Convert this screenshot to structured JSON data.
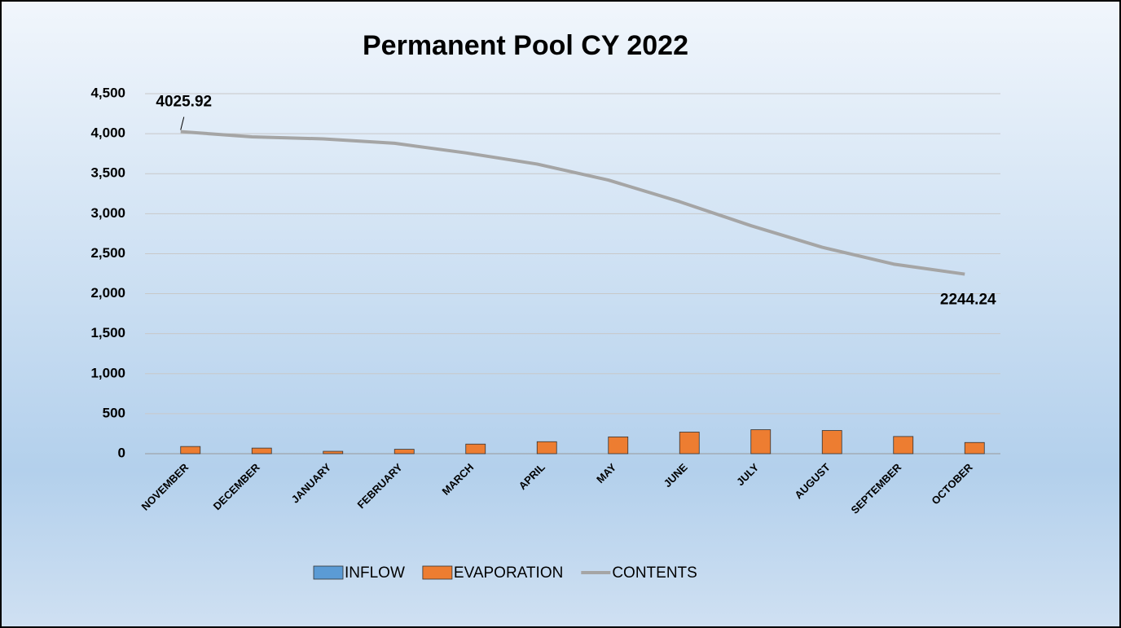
{
  "chart_data": {
    "type": "bar_line",
    "title": "Permanent Pool CY 2022",
    "categories": [
      "NOVEMBER",
      "DECEMBER",
      "JANUARY",
      "FEBRUARY",
      "MARCH",
      "APRIL",
      "MAY",
      "JUNE",
      "JULY",
      "AUGUST",
      "SEPTEMBER",
      "OCTOBER"
    ],
    "series": [
      {
        "name": "INFLOW",
        "type": "bar",
        "color": "#5b9bd5",
        "values": [
          0,
          0,
          0,
          0,
          0,
          0,
          0,
          0,
          0,
          0,
          0,
          0
        ]
      },
      {
        "name": "EVAPORATION",
        "type": "bar",
        "color": "#ed7d31",
        "values": [
          90,
          70,
          30,
          55,
          120,
          150,
          210,
          270,
          300,
          290,
          215,
          140
        ]
      },
      {
        "name": "CONTENTS",
        "type": "line",
        "color": "#a5a5a5",
        "values": [
          4025.92,
          3960,
          3935,
          3880,
          3760,
          3620,
          3420,
          3150,
          2850,
          2580,
          2370,
          2244.24
        ],
        "value_labels": [
          "4025.92",
          null,
          null,
          null,
          null,
          null,
          null,
          null,
          null,
          null,
          null,
          "2244.24"
        ]
      }
    ],
    "ylim": [
      0,
      4500
    ],
    "yticks": [
      0,
      500,
      {
        "value": 1000,
        "label": "1,000"
      },
      {
        "value": 1500,
        "label": "1,500"
      },
      {
        "value": 2000,
        "label": "2,000"
      },
      {
        "value": 2500,
        "label": "2,500"
      },
      {
        "value": 3000,
        "label": "3,000"
      },
      {
        "value": 3500,
        "label": "3,500"
      },
      {
        "value": 4000,
        "label": "4,000"
      },
      {
        "value": 4500,
        "label": "4,500"
      }
    ],
    "grid": true,
    "legend": "bottom"
  }
}
